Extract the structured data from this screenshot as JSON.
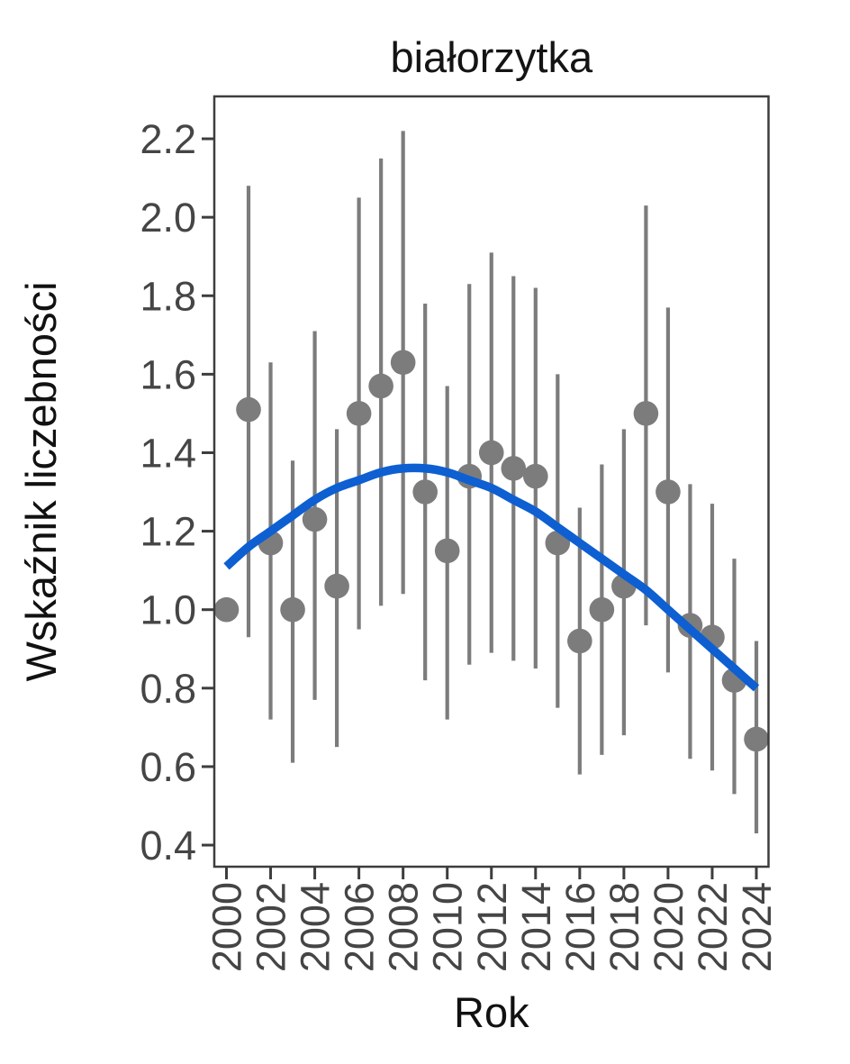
{
  "chart_data": {
    "type": "scatter",
    "title": "białorzytka",
    "xlabel": "Rok",
    "ylabel": "Wskaźnik liczebności",
    "x_ticks": [
      2000,
      2002,
      2004,
      2006,
      2008,
      2010,
      2012,
      2014,
      2016,
      2018,
      2020,
      2022,
      2024
    ],
    "y_ticks": [
      0.4,
      0.6,
      0.8,
      1.0,
      1.2,
      1.4,
      1.6,
      1.8,
      2.0,
      2.2
    ],
    "xlim": [
      1999.45,
      2024.55
    ],
    "ylim": [
      0.345,
      2.308
    ],
    "grid": false,
    "legend_position": "none",
    "series": [
      {
        "name": "index",
        "type": "points_with_ci",
        "color": "#7c7c7c",
        "points": [
          {
            "year": 2000,
            "value": 1.0,
            "lo": null,
            "hi": null
          },
          {
            "year": 2001,
            "value": 1.51,
            "lo": 0.93,
            "hi": 2.08
          },
          {
            "year": 2002,
            "value": 1.17,
            "lo": 0.72,
            "hi": 1.63
          },
          {
            "year": 2003,
            "value": 1.0,
            "lo": 0.61,
            "hi": 1.38
          },
          {
            "year": 2004,
            "value": 1.23,
            "lo": 0.77,
            "hi": 1.71
          },
          {
            "year": 2005,
            "value": 1.06,
            "lo": 0.65,
            "hi": 1.46
          },
          {
            "year": 2006,
            "value": 1.5,
            "lo": 0.95,
            "hi": 2.05
          },
          {
            "year": 2007,
            "value": 1.57,
            "lo": 1.01,
            "hi": 2.15
          },
          {
            "year": 2008,
            "value": 1.63,
            "lo": 1.04,
            "hi": 2.22
          },
          {
            "year": 2009,
            "value": 1.3,
            "lo": 0.82,
            "hi": 1.78
          },
          {
            "year": 2010,
            "value": 1.15,
            "lo": 0.72,
            "hi": 1.57
          },
          {
            "year": 2011,
            "value": 1.34,
            "lo": 0.86,
            "hi": 1.83
          },
          {
            "year": 2012,
            "value": 1.4,
            "lo": 0.89,
            "hi": 1.91
          },
          {
            "year": 2013,
            "value": 1.36,
            "lo": 0.87,
            "hi": 1.85
          },
          {
            "year": 2014,
            "value": 1.34,
            "lo": 0.85,
            "hi": 1.82
          },
          {
            "year": 2015,
            "value": 1.17,
            "lo": 0.75,
            "hi": 1.6
          },
          {
            "year": 2016,
            "value": 0.92,
            "lo": 0.58,
            "hi": 1.26
          },
          {
            "year": 2017,
            "value": 1.0,
            "lo": 0.63,
            "hi": 1.37
          },
          {
            "year": 2018,
            "value": 1.06,
            "lo": 0.68,
            "hi": 1.46
          },
          {
            "year": 2019,
            "value": 1.5,
            "lo": 0.96,
            "hi": 2.03
          },
          {
            "year": 2020,
            "value": 1.3,
            "lo": 0.84,
            "hi": 1.77
          },
          {
            "year": 2021,
            "value": 0.96,
            "lo": 0.62,
            "hi": 1.32
          },
          {
            "year": 2022,
            "value": 0.93,
            "lo": 0.59,
            "hi": 1.27
          },
          {
            "year": 2023,
            "value": 0.82,
            "lo": 0.53,
            "hi": 1.13
          },
          {
            "year": 2024,
            "value": 0.67,
            "lo": 0.43,
            "hi": 0.92
          }
        ]
      },
      {
        "name": "trend",
        "type": "smooth_line",
        "color": "#0d5fd2",
        "points": [
          [
            2000,
            1.11
          ],
          [
            2001,
            1.16
          ],
          [
            2002,
            1.2
          ],
          [
            2003,
            1.24
          ],
          [
            2004,
            1.28
          ],
          [
            2005,
            1.31
          ],
          [
            2006,
            1.33
          ],
          [
            2007,
            1.35
          ],
          [
            2008,
            1.36
          ],
          [
            2009,
            1.36
          ],
          [
            2010,
            1.35
          ],
          [
            2011,
            1.33
          ],
          [
            2012,
            1.31
          ],
          [
            2013,
            1.28
          ],
          [
            2014,
            1.25
          ],
          [
            2015,
            1.21
          ],
          [
            2016,
            1.17
          ],
          [
            2017,
            1.13
          ],
          [
            2018,
            1.09
          ],
          [
            2019,
            1.05
          ],
          [
            2020,
            1.0
          ],
          [
            2021,
            0.95
          ],
          [
            2022,
            0.9
          ],
          [
            2023,
            0.85
          ],
          [
            2024,
            0.8
          ]
        ]
      }
    ],
    "styles": {
      "background": "#ffffff",
      "frame_color": "#3d3d3d",
      "tick_color": "#3d3d3d",
      "tick_label_color": "#454545",
      "point_color": "#7c7c7c",
      "errorbar_color": "#7c7c7c",
      "trend_color": "#0d5fd2",
      "title_color": "#141414"
    }
  }
}
